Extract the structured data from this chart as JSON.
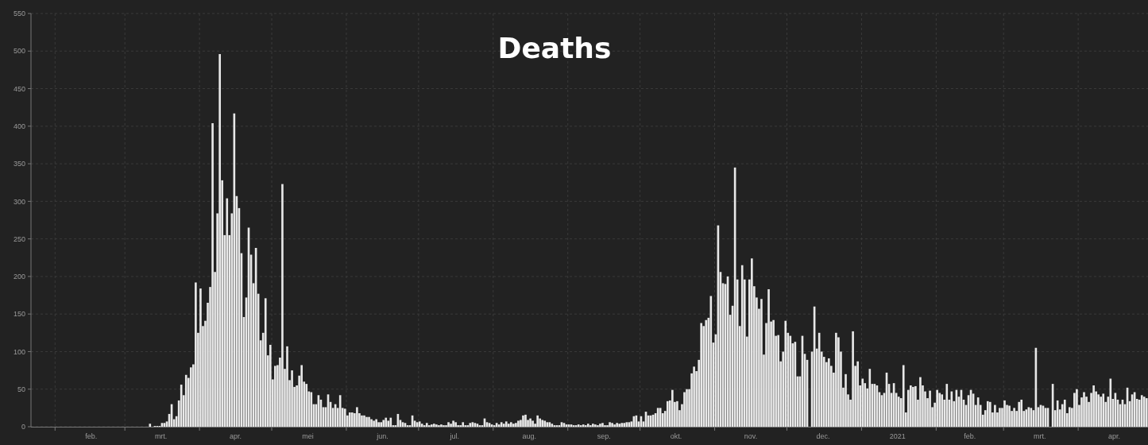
{
  "chart_data": {
    "type": "bar",
    "title": "Deaths",
    "xlim": [
      "2020-01-22",
      "2021-04-30"
    ],
    "ylim": [
      0,
      550
    ],
    "yticks": [
      0,
      50,
      100,
      150,
      200,
      250,
      300,
      350,
      400,
      450,
      500,
      550
    ],
    "xticks": [
      {
        "value": "2020-02-01",
        "label": null
      },
      {
        "value": "2020-02-16",
        "label": "feb."
      },
      {
        "value": "2020-03-01",
        "label": null
      },
      {
        "value": "2020-03-16",
        "label": "mrt."
      },
      {
        "value": "2020-04-01",
        "label": null
      },
      {
        "value": "2020-04-16",
        "label": "apr."
      },
      {
        "value": "2020-05-01",
        "label": null
      },
      {
        "value": "2020-05-16",
        "label": "mei"
      },
      {
        "value": "2020-06-01",
        "label": null
      },
      {
        "value": "2020-06-16",
        "label": "jun."
      },
      {
        "value": "2020-07-01",
        "label": null
      },
      {
        "value": "2020-07-16",
        "label": "jul."
      },
      {
        "value": "2020-08-01",
        "label": null
      },
      {
        "value": "2020-08-16",
        "label": "aug."
      },
      {
        "value": "2020-09-01",
        "label": null
      },
      {
        "value": "2020-09-16",
        "label": "sep."
      },
      {
        "value": "2020-10-01",
        "label": null
      },
      {
        "value": "2020-10-16",
        "label": "okt."
      },
      {
        "value": "2020-11-01",
        "label": null
      },
      {
        "value": "2020-11-16",
        "label": "nov."
      },
      {
        "value": "2020-12-01",
        "label": null
      },
      {
        "value": "2020-12-16",
        "label": "dec."
      },
      {
        "value": "2021-01-01",
        "label": null
      },
      {
        "value": "2021-01-16",
        "label": "2021"
      },
      {
        "value": "2021-02-01",
        "label": null
      },
      {
        "value": "2021-02-15",
        "label": "feb."
      },
      {
        "value": "2021-03-01",
        "label": null
      },
      {
        "value": "2021-03-16",
        "label": "mrt."
      },
      {
        "value": "2021-04-01",
        "label": null
      },
      {
        "value": "2021-04-16",
        "label": "apr."
      }
    ],
    "grid": true,
    "color": "#e8e8e8",
    "x": [
      "2020-03-11",
      "2020-03-12",
      "2020-03-13",
      "2020-03-14",
      "2020-03-15",
      "2020-03-16",
      "2020-03-17",
      "2020-03-18",
      "2020-03-19",
      "2020-03-20",
      "2020-03-21",
      "2020-03-22",
      "2020-03-23",
      "2020-03-24",
      "2020-03-25",
      "2020-03-26",
      "2020-03-27",
      "2020-03-28",
      "2020-03-29",
      "2020-03-30",
      "2020-03-31",
      "2020-04-01",
      "2020-04-02",
      "2020-04-03",
      "2020-04-04",
      "2020-04-05",
      "2020-04-06",
      "2020-04-07",
      "2020-04-08",
      "2020-04-09",
      "2020-04-10",
      "2020-04-11",
      "2020-04-12",
      "2020-04-13",
      "2020-04-14",
      "2020-04-15",
      "2020-04-16",
      "2020-04-17",
      "2020-04-18",
      "2020-04-19",
      "2020-04-20",
      "2020-04-21",
      "2020-04-22",
      "2020-04-23",
      "2020-04-24",
      "2020-04-25",
      "2020-04-26",
      "2020-04-27",
      "2020-04-28",
      "2020-04-29",
      "2020-04-30",
      "2020-05-01",
      "2020-05-02",
      "2020-05-03",
      "2020-05-04",
      "2020-05-05",
      "2020-05-06",
      "2020-05-07",
      "2020-05-08",
      "2020-05-09",
      "2020-05-10",
      "2020-05-11",
      "2020-05-12",
      "2020-05-13",
      "2020-05-14",
      "2020-05-15",
      "2020-05-16",
      "2020-05-17",
      "2020-05-18",
      "2020-05-19",
      "2020-05-20",
      "2020-05-21",
      "2020-05-22",
      "2020-05-23",
      "2020-05-24",
      "2020-05-25",
      "2020-05-26",
      "2020-05-27",
      "2020-05-28",
      "2020-05-29",
      "2020-05-30",
      "2020-05-31",
      "2020-06-01",
      "2020-06-02",
      "2020-06-03",
      "2020-06-04",
      "2020-06-05",
      "2020-06-06",
      "2020-06-07",
      "2020-06-08",
      "2020-06-09",
      "2020-06-10",
      "2020-06-11",
      "2020-06-12",
      "2020-06-13",
      "2020-06-14",
      "2020-06-15",
      "2020-06-16",
      "2020-06-17",
      "2020-06-18",
      "2020-06-19",
      "2020-06-20",
      "2020-06-21",
      "2020-06-22",
      "2020-06-23",
      "2020-06-24",
      "2020-06-25",
      "2020-06-26",
      "2020-06-27",
      "2020-06-28",
      "2020-06-29",
      "2020-06-30",
      "2020-07-01",
      "2020-07-02",
      "2020-07-03",
      "2020-07-04",
      "2020-07-05",
      "2020-07-06",
      "2020-07-07",
      "2020-07-08",
      "2020-07-09",
      "2020-07-10",
      "2020-07-11",
      "2020-07-12",
      "2020-07-13",
      "2020-07-14",
      "2020-07-15",
      "2020-07-16",
      "2020-07-17",
      "2020-07-18",
      "2020-07-19",
      "2020-07-20",
      "2020-07-21",
      "2020-07-22",
      "2020-07-23",
      "2020-07-24",
      "2020-07-25",
      "2020-07-26",
      "2020-07-27",
      "2020-07-28",
      "2020-07-29",
      "2020-07-30",
      "2020-07-31",
      "2020-08-01",
      "2020-08-02",
      "2020-08-03",
      "2020-08-04",
      "2020-08-05",
      "2020-08-06",
      "2020-08-07",
      "2020-08-08",
      "2020-08-09",
      "2020-08-10",
      "2020-08-11",
      "2020-08-12",
      "2020-08-13",
      "2020-08-14",
      "2020-08-15",
      "2020-08-16",
      "2020-08-17",
      "2020-08-18",
      "2020-08-19",
      "2020-08-20",
      "2020-08-21",
      "2020-08-22",
      "2020-08-23",
      "2020-08-24",
      "2020-08-25",
      "2020-08-26",
      "2020-08-27",
      "2020-08-28",
      "2020-08-29",
      "2020-08-30",
      "2020-08-31",
      "2020-09-01",
      "2020-09-02",
      "2020-09-03",
      "2020-09-04",
      "2020-09-05",
      "2020-09-06",
      "2020-09-07",
      "2020-09-08",
      "2020-09-09",
      "2020-09-10",
      "2020-09-11",
      "2020-09-12",
      "2020-09-13",
      "2020-09-14",
      "2020-09-15",
      "2020-09-16",
      "2020-09-17",
      "2020-09-18",
      "2020-09-19",
      "2020-09-20",
      "2020-09-21",
      "2020-09-22",
      "2020-09-23",
      "2020-09-24",
      "2020-09-25",
      "2020-09-26",
      "2020-09-27",
      "2020-09-28",
      "2020-09-29",
      "2020-09-30",
      "2020-10-01",
      "2020-10-02",
      "2020-10-03",
      "2020-10-04",
      "2020-10-05",
      "2020-10-06",
      "2020-10-07",
      "2020-10-08",
      "2020-10-09",
      "2020-10-10",
      "2020-10-11",
      "2020-10-12",
      "2020-10-13",
      "2020-10-14",
      "2020-10-15",
      "2020-10-16",
      "2020-10-17",
      "2020-10-18",
      "2020-10-19",
      "2020-10-20",
      "2020-10-21",
      "2020-10-22",
      "2020-10-23",
      "2020-10-24",
      "2020-10-25",
      "2020-10-26",
      "2020-10-27",
      "2020-10-28",
      "2020-10-29",
      "2020-10-30",
      "2020-10-31",
      "2020-11-01",
      "2020-11-02",
      "2020-11-03",
      "2020-11-04",
      "2020-11-05",
      "2020-11-06",
      "2020-11-07",
      "2020-11-08",
      "2020-11-09",
      "2020-11-10",
      "2020-11-11",
      "2020-11-12",
      "2020-11-13",
      "2020-11-14",
      "2020-11-15",
      "2020-11-16",
      "2020-11-17",
      "2020-11-18",
      "2020-11-19",
      "2020-11-20",
      "2020-11-21",
      "2020-11-22",
      "2020-11-23",
      "2020-11-24",
      "2020-11-25",
      "2020-11-26",
      "2020-11-27",
      "2020-11-28",
      "2020-11-29",
      "2020-11-30",
      "2020-12-01",
      "2020-12-02",
      "2020-12-03",
      "2020-12-04",
      "2020-12-05",
      "2020-12-06",
      "2020-12-07",
      "2020-12-08",
      "2020-12-09",
      "2020-12-10",
      "2020-12-11",
      "2020-12-12",
      "2020-12-13",
      "2020-12-14",
      "2020-12-15",
      "2020-12-16",
      "2020-12-17",
      "2020-12-18",
      "2020-12-19",
      "2020-12-20",
      "2020-12-21",
      "2020-12-22",
      "2020-12-23",
      "2020-12-24",
      "2020-12-25",
      "2020-12-26",
      "2020-12-27",
      "2020-12-28",
      "2020-12-29",
      "2020-12-30",
      "2020-12-31",
      "2021-01-01",
      "2021-01-02",
      "2021-01-03",
      "2021-01-04",
      "2021-01-05",
      "2021-01-06",
      "2021-01-07",
      "2021-01-08",
      "2021-01-09",
      "2021-01-10",
      "2021-01-11",
      "2021-01-12",
      "2021-01-13",
      "2021-01-14",
      "2021-01-15",
      "2021-01-16",
      "2021-01-17",
      "2021-01-18",
      "2021-01-19",
      "2021-01-20",
      "2021-01-21",
      "2021-01-22",
      "2021-01-23",
      "2021-01-24",
      "2021-01-25",
      "2021-01-26",
      "2021-01-27",
      "2021-01-28",
      "2021-01-29",
      "2021-01-30",
      "2021-01-31",
      "2021-02-01",
      "2021-02-02",
      "2021-02-03",
      "2021-02-04",
      "2021-02-05",
      "2021-02-06",
      "2021-02-07",
      "2021-02-08",
      "2021-02-09",
      "2021-02-10",
      "2021-02-11",
      "2021-02-12",
      "2021-02-13",
      "2021-02-14",
      "2021-02-15",
      "2021-02-16",
      "2021-02-17",
      "2021-02-18",
      "2021-02-19",
      "2021-02-20",
      "2021-02-21",
      "2021-02-22",
      "2021-02-23",
      "2021-02-24",
      "2021-02-25",
      "2021-02-26",
      "2021-02-27",
      "2021-02-28",
      "2021-03-01",
      "2021-03-02",
      "2021-03-03",
      "2021-03-04",
      "2021-03-05",
      "2021-03-06",
      "2021-03-07",
      "2021-03-08",
      "2021-03-09",
      "2021-03-10",
      "2021-03-11",
      "2021-03-12",
      "2021-03-13",
      "2021-03-14",
      "2021-03-15",
      "2021-03-16",
      "2021-03-17",
      "2021-03-18",
      "2021-03-19",
      "2021-03-20",
      "2021-03-21",
      "2021-03-22",
      "2021-03-23",
      "2021-03-24",
      "2021-03-25",
      "2021-03-26",
      "2021-03-27",
      "2021-03-28",
      "2021-03-29",
      "2021-03-30",
      "2021-03-31",
      "2021-04-01",
      "2021-04-02",
      "2021-04-03",
      "2021-04-04",
      "2021-04-05",
      "2021-04-06",
      "2021-04-07",
      "2021-04-08",
      "2021-04-09",
      "2021-04-10",
      "2021-04-11",
      "2021-04-12",
      "2021-04-13",
      "2021-04-14",
      "2021-04-15",
      "2021-04-16",
      "2021-04-17",
      "2021-04-18",
      "2021-04-19",
      "2021-04-20",
      "2021-04-21",
      "2021-04-22",
      "2021-04-23",
      "2021-04-24",
      "2021-04-25",
      "2021-04-26",
      "2021-04-27",
      "2021-04-28",
      "2021-04-29"
    ],
    "values": [
      4,
      0,
      1,
      1,
      1,
      5,
      5,
      7,
      17,
      30,
      10,
      14,
      35,
      56,
      42,
      69,
      65,
      79,
      83,
      192,
      125,
      184,
      134,
      141,
      165,
      186,
      404,
      206,
      284,
      496,
      328,
      255,
      304,
      255,
      284,
      417,
      307,
      291,
      231,
      146,
      172,
      265,
      229,
      191,
      238,
      177,
      115,
      125,
      171,
      95,
      109,
      63,
      81,
      82,
      92,
      323,
      77,
      107,
      62,
      75,
      53,
      55,
      68,
      82,
      60,
      57,
      47,
      46,
      30,
      30,
      42,
      36,
      26,
      26,
      43,
      33,
      25,
      30,
      25,
      42,
      25,
      24,
      15,
      19,
      19,
      18,
      26,
      18,
      15,
      15,
      13,
      13,
      10,
      8,
      10,
      6,
      6,
      9,
      12,
      8,
      12,
      2,
      2,
      17,
      9,
      6,
      5,
      2,
      2,
      15,
      8,
      6,
      7,
      4,
      2,
      5,
      2,
      3,
      4,
      3,
      2,
      3,
      2,
      2,
      6,
      4,
      8,
      6,
      2,
      2,
      6,
      2,
      2,
      5,
      6,
      5,
      4,
      2,
      2,
      11,
      6,
      5,
      3,
      2,
      5,
      3,
      6,
      4,
      7,
      4,
      6,
      4,
      5,
      8,
      9,
      15,
      16,
      9,
      11,
      8,
      4,
      15,
      11,
      9,
      8,
      6,
      6,
      4,
      2,
      2,
      2,
      6,
      5,
      3,
      3,
      3,
      2,
      2,
      3,
      2,
      3,
      2,
      4,
      2,
      4,
      3,
      2,
      4,
      5,
      2,
      2,
      6,
      5,
      3,
      5,
      4,
      5,
      5,
      6,
      6,
      7,
      14,
      15,
      7,
      14,
      7,
      20,
      15,
      15,
      16,
      18,
      25,
      25,
      18,
      21,
      34,
      35,
      49,
      33,
      34,
      22,
      30,
      46,
      50,
      50,
      71,
      80,
      74,
      89,
      138,
      134,
      142,
      145,
      174,
      112,
      123,
      268,
      206,
      191,
      190,
      200,
      149,
      161,
      345,
      196,
      134,
      215,
      196,
      120,
      196,
      224,
      187,
      172,
      157,
      170,
      96,
      138,
      183,
      140,
      142,
      121,
      122,
      87,
      100,
      141,
      125,
      121,
      111,
      113,
      67,
      67,
      121,
      97,
      89,
      0,
      100,
      160,
      104,
      125,
      100,
      93,
      86,
      91,
      81,
      72,
      125,
      119,
      100,
      52,
      70,
      43,
      36,
      127,
      81,
      87,
      55,
      64,
      58,
      51,
      77,
      57,
      57,
      55,
      46,
      42,
      45,
      72,
      57,
      45,
      58,
      45,
      40,
      38,
      82,
      19,
      49,
      55,
      53,
      54,
      36,
      66,
      55,
      47,
      38,
      48,
      26,
      32,
      49,
      45,
      43,
      36,
      57,
      36,
      47,
      34,
      49,
      40,
      49,
      36,
      29,
      42,
      49,
      44,
      29,
      39,
      29,
      16,
      22,
      34,
      33,
      19,
      29,
      19,
      25,
      25,
      35,
      29,
      28,
      21,
      25,
      21,
      33,
      36,
      21,
      23,
      26,
      25,
      22,
      105,
      26,
      29,
      28,
      25,
      25,
      0,
      57,
      22,
      35,
      23,
      30,
      36,
      18,
      26,
      25,
      45,
      50,
      29,
      39,
      46,
      40,
      33,
      45,
      55,
      47,
      43,
      40,
      44,
      33,
      40,
      64,
      37,
      45,
      36,
      30,
      36,
      30,
      52,
      34,
      43,
      46,
      37,
      36,
      42,
      40,
      38
    ]
  }
}
